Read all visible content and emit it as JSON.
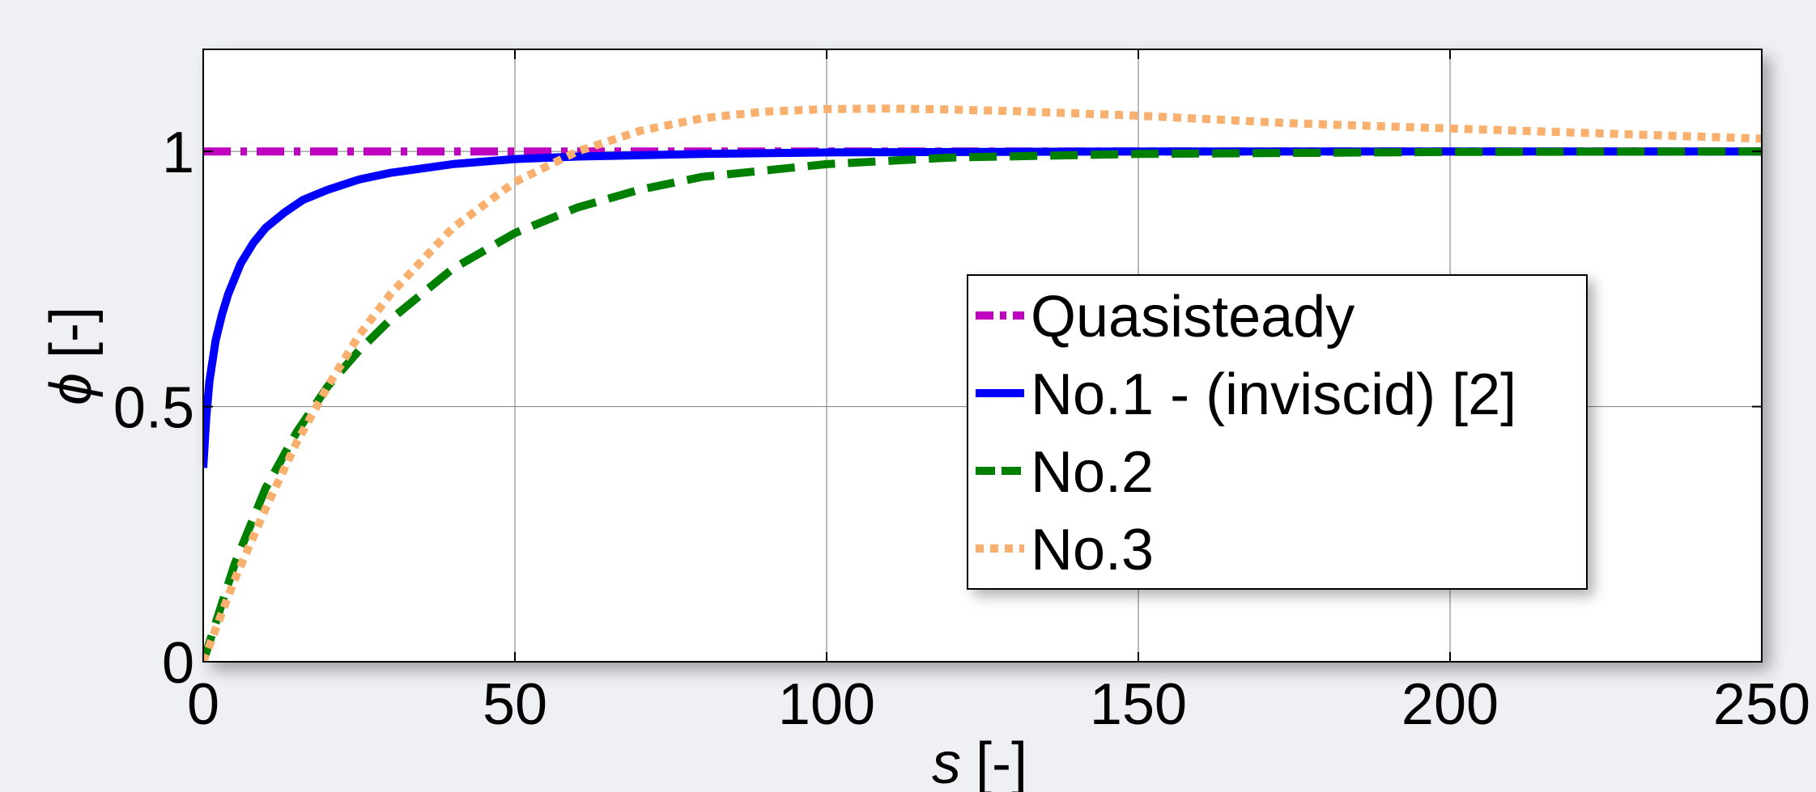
{
  "chart_data": {
    "type": "line",
    "title": "",
    "xlabel": {
      "var": "s",
      "unit": "[-]"
    },
    "ylabel": {
      "var": "ϕ",
      "unit": "[-]"
    },
    "xlim": [
      0,
      250
    ],
    "ylim": [
      0,
      1.2
    ],
    "xticks": [
      0,
      50,
      100,
      150,
      200,
      250
    ],
    "xtick_labels": [
      "0",
      "50",
      "100",
      "150",
      "200",
      "250"
    ],
    "yticks": [
      0,
      0.5,
      1
    ],
    "ytick_labels": [
      "0",
      "0.5",
      "1"
    ],
    "grid": true,
    "legend_position": "center-right",
    "series": [
      {
        "name": "Quasisteady",
        "color": "#c000c0",
        "style": "dashdot",
        "x": [
          0,
          50,
          100,
          150,
          200,
          250
        ],
        "y": [
          1,
          1,
          1,
          1,
          1,
          1
        ]
      },
      {
        "name": "No.1 - (inviscid) [2]",
        "color": "#0000ff",
        "style": "solid",
        "x": [
          0,
          0.5,
          1,
          2,
          3,
          4,
          6,
          8,
          10,
          13,
          16,
          20,
          25,
          30,
          40,
          50,
          60,
          80,
          100,
          150,
          200,
          250
        ],
        "y": [
          0.38,
          0.48,
          0.55,
          0.63,
          0.68,
          0.72,
          0.78,
          0.82,
          0.85,
          0.88,
          0.905,
          0.925,
          0.945,
          0.958,
          0.975,
          0.985,
          0.99,
          0.995,
          0.998,
          1.0,
          1.0,
          1.0
        ]
      },
      {
        "name": "No.2",
        "color": "#008000",
        "style": "dashed",
        "x": [
          0,
          5,
          10,
          15,
          20,
          25,
          30,
          40,
          50,
          60,
          70,
          80,
          100,
          120,
          150,
          200,
          250
        ],
        "y": [
          0.0,
          0.19,
          0.34,
          0.45,
          0.54,
          0.61,
          0.67,
          0.77,
          0.84,
          0.89,
          0.925,
          0.95,
          0.975,
          0.988,
          0.995,
          0.999,
          1.0
        ]
      },
      {
        "name": "No.3",
        "color": "#f9b06e",
        "style": "dotted",
        "x": [
          0,
          5,
          10,
          15,
          20,
          25,
          30,
          40,
          50,
          60,
          70,
          80,
          90,
          100,
          110,
          120,
          130,
          150,
          175,
          200,
          225,
          250
        ],
        "y": [
          0.0,
          0.16,
          0.3,
          0.43,
          0.54,
          0.64,
          0.72,
          0.85,
          0.94,
          1.0,
          1.04,
          1.065,
          1.078,
          1.083,
          1.084,
          1.082,
          1.079,
          1.07,
          1.055,
          1.045,
          1.035,
          1.025
        ]
      }
    ]
  }
}
